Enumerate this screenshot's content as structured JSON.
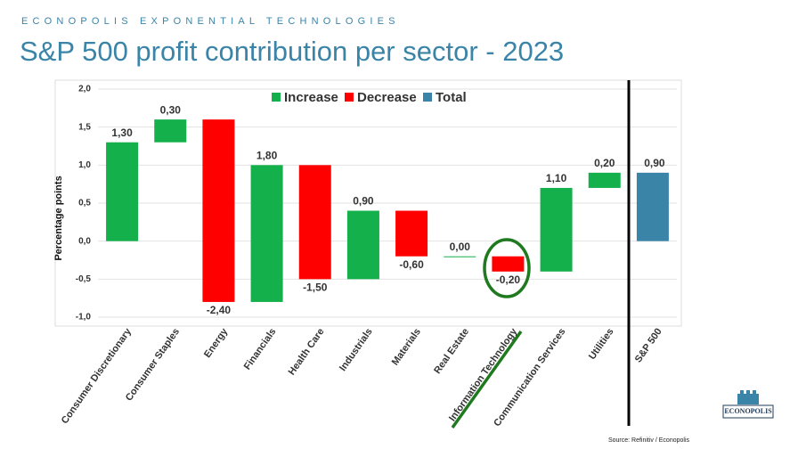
{
  "header": "ECONOPOLIS EXPONENTIAL TECHNOLOGIES",
  "chart_data": {
    "type": "waterfall",
    "title": "S&P 500 profit contribution per sector - 2023",
    "y_label": "Percentage points",
    "categories": [
      "Consumer Discretionary",
      "Consumer Staples",
      "Energy",
      "Financials",
      "Health Care",
      "Industrials",
      "Materials",
      "Real Estate",
      "Information Technology",
      "Communication Services",
      "Utilities",
      "S&P 500"
    ],
    "values": [
      1.3,
      0.3,
      -2.4,
      1.8,
      -1.5,
      0.9,
      -0.6,
      0.0,
      -0.2,
      1.1,
      0.2,
      0.9
    ],
    "value_labels": [
      "1,30",
      "0,30",
      "-2,40",
      "1,80",
      "-1,50",
      "0,90",
      "-0,60",
      "0,00",
      "-0,20",
      "1,10",
      "0,20",
      "0,90"
    ],
    "legend": [
      {
        "name": "Increase",
        "color": "#13b04b"
      },
      {
        "name": "Decrease",
        "color": "#ff0000"
      },
      {
        "name": "Total",
        "color": "#3a84a8"
      }
    ],
    "ylim": [
      -1.0,
      2.0
    ],
    "yticks": [
      {
        "value": 2.0,
        "label": "2,0"
      },
      {
        "value": 1.5,
        "label": "1,5"
      },
      {
        "value": 1.0,
        "label": "1,0"
      },
      {
        "value": 0.5,
        "label": "0,5"
      },
      {
        "value": 0.0,
        "label": "0,0"
      },
      {
        "value": -0.5,
        "label": "-0,5"
      },
      {
        "value": -1.0,
        "label": "-1,0"
      }
    ],
    "grid": true
  },
  "source": "Source: Refinitiv / Econopolis",
  "logo": "ECONOPOLIS"
}
